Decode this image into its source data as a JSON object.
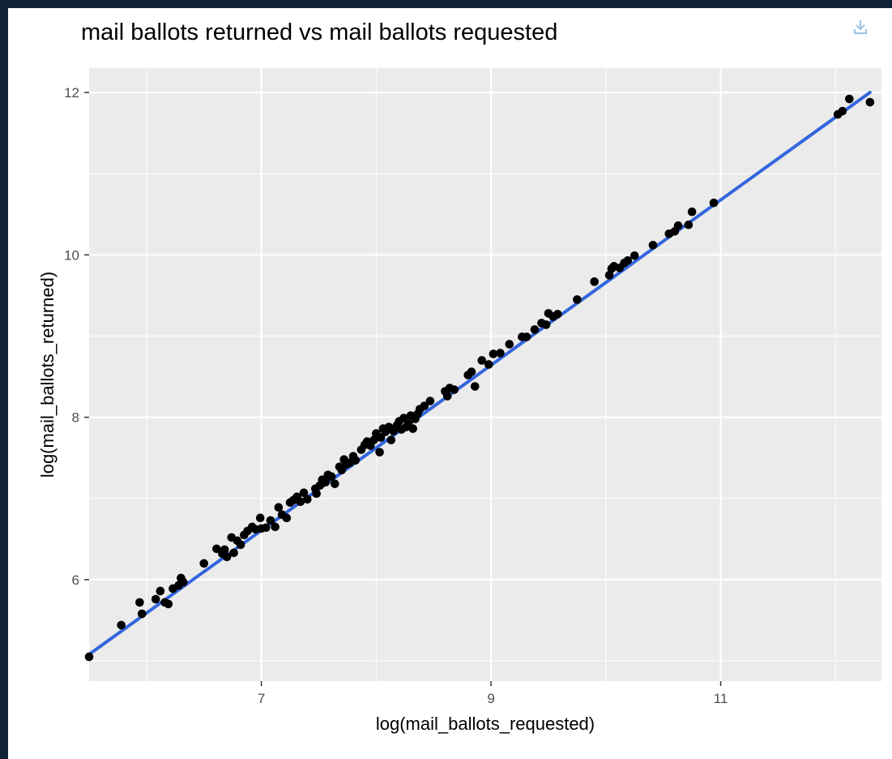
{
  "chart_data": {
    "type": "scatter",
    "title": "mail ballots returned vs mail ballots requested",
    "xlabel": "log(mail_ballots_requested)",
    "ylabel": "log(mail_ballots_returned)",
    "xlim": [
      5.5,
      12.4
    ],
    "ylim": [
      4.75,
      12.3
    ],
    "x_ticks": [
      7,
      9,
      11
    ],
    "y_ticks": [
      6,
      8,
      10,
      12
    ],
    "x_minor": [
      6,
      8,
      10,
      12
    ],
    "y_minor": [
      5,
      7,
      9,
      11
    ],
    "grid": true,
    "background": "#ebebeb",
    "point_color": "#000000",
    "fit_line": {
      "color": "#3366dd",
      "x": [
        5.5,
        12.3
      ],
      "y": [
        5.08,
        12.0
      ]
    },
    "points": [
      [
        5.5,
        5.05
      ],
      [
        5.78,
        5.44
      ],
      [
        5.94,
        5.72
      ],
      [
        5.96,
        5.58
      ],
      [
        6.08,
        5.76
      ],
      [
        6.12,
        5.86
      ],
      [
        6.16,
        5.72
      ],
      [
        6.19,
        5.7
      ],
      [
        6.23,
        5.89
      ],
      [
        6.28,
        5.93
      ],
      [
        6.3,
        6.02
      ],
      [
        6.32,
        5.97
      ],
      [
        6.5,
        6.2
      ],
      [
        6.61,
        6.38
      ],
      [
        6.66,
        6.32
      ],
      [
        6.68,
        6.37
      ],
      [
        6.7,
        6.28
      ],
      [
        6.74,
        6.52
      ],
      [
        6.76,
        6.33
      ],
      [
        6.79,
        6.48
      ],
      [
        6.82,
        6.43
      ],
      [
        6.85,
        6.55
      ],
      [
        6.88,
        6.6
      ],
      [
        6.92,
        6.65
      ],
      [
        6.95,
        6.62
      ],
      [
        6.99,
        6.76
      ],
      [
        7.0,
        6.63
      ],
      [
        7.04,
        6.64
      ],
      [
        7.08,
        6.73
      ],
      [
        7.12,
        6.65
      ],
      [
        7.15,
        6.89
      ],
      [
        7.18,
        6.8
      ],
      [
        7.22,
        6.76
      ],
      [
        7.25,
        6.95
      ],
      [
        7.28,
        6.98
      ],
      [
        7.31,
        7.02
      ],
      [
        7.34,
        6.96
      ],
      [
        7.37,
        7.07
      ],
      [
        7.4,
        6.99
      ],
      [
        7.47,
        7.12
      ],
      [
        7.48,
        7.06
      ],
      [
        7.51,
        7.16
      ],
      [
        7.53,
        7.23
      ],
      [
        7.56,
        7.2
      ],
      [
        7.58,
        7.29
      ],
      [
        7.61,
        7.27
      ],
      [
        7.64,
        7.18
      ],
      [
        7.68,
        7.39
      ],
      [
        7.7,
        7.35
      ],
      [
        7.72,
        7.48
      ],
      [
        7.74,
        7.42
      ],
      [
        7.77,
        7.44
      ],
      [
        7.8,
        7.52
      ],
      [
        7.82,
        7.47
      ],
      [
        7.87,
        7.6
      ],
      [
        7.9,
        7.66
      ],
      [
        7.92,
        7.7
      ],
      [
        7.95,
        7.65
      ],
      [
        7.98,
        7.72
      ],
      [
        8.0,
        7.8
      ],
      [
        8.03,
        7.57
      ],
      [
        8.04,
        7.75
      ],
      [
        8.06,
        7.86
      ],
      [
        8.08,
        7.82
      ],
      [
        8.11,
        7.88
      ],
      [
        8.13,
        7.72
      ],
      [
        8.15,
        7.83
      ],
      [
        8.18,
        7.9
      ],
      [
        8.2,
        7.95
      ],
      [
        8.22,
        7.85
      ],
      [
        8.24,
        7.99
      ],
      [
        8.26,
        7.88
      ],
      [
        8.28,
        7.92
      ],
      [
        8.3,
        8.02
      ],
      [
        8.32,
        7.86
      ],
      [
        8.34,
        7.98
      ],
      [
        8.36,
        8.04
      ],
      [
        8.38,
        8.1
      ],
      [
        8.42,
        8.14
      ],
      [
        8.47,
        8.2
      ],
      [
        8.6,
        8.32
      ],
      [
        8.62,
        8.26
      ],
      [
        8.64,
        8.36
      ],
      [
        8.68,
        8.34
      ],
      [
        8.8,
        8.52
      ],
      [
        8.83,
        8.56
      ],
      [
        8.86,
        8.38
      ],
      [
        8.92,
        8.7
      ],
      [
        8.98,
        8.65
      ],
      [
        9.02,
        8.78
      ],
      [
        9.08,
        8.79
      ],
      [
        9.16,
        8.9
      ],
      [
        9.27,
        8.99
      ],
      [
        9.31,
        8.99
      ],
      [
        9.38,
        9.08
      ],
      [
        9.44,
        9.16
      ],
      [
        9.48,
        9.14
      ],
      [
        9.5,
        9.28
      ],
      [
        9.54,
        9.24
      ],
      [
        9.58,
        9.27
      ],
      [
        9.75,
        9.45
      ],
      [
        9.9,
        9.67
      ],
      [
        10.03,
        9.75
      ],
      [
        10.05,
        9.83
      ],
      [
        10.07,
        9.86
      ],
      [
        10.12,
        9.84
      ],
      [
        10.16,
        9.9
      ],
      [
        10.19,
        9.93
      ],
      [
        10.25,
        9.99
      ],
      [
        10.41,
        10.12
      ],
      [
        10.55,
        10.26
      ],
      [
        10.6,
        10.29
      ],
      [
        10.63,
        10.36
      ],
      [
        10.72,
        10.37
      ],
      [
        10.75,
        10.53
      ],
      [
        10.94,
        10.64
      ],
      [
        12.02,
        11.73
      ],
      [
        12.06,
        11.77
      ],
      [
        12.12,
        11.92
      ],
      [
        12.3,
        11.88
      ]
    ]
  },
  "icons": {
    "download": "download-icon"
  }
}
